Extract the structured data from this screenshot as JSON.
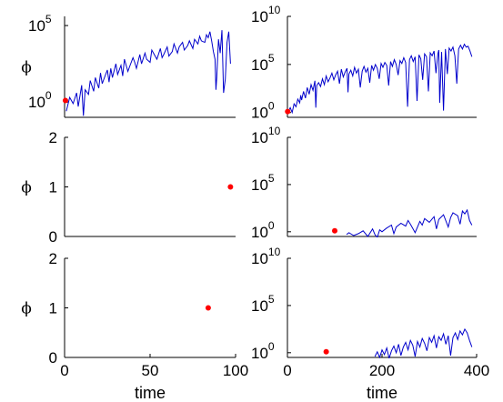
{
  "chart_data": [
    {
      "type": "line",
      "ylabel": "ϕ",
      "yscale": "log",
      "xlim": [
        0,
        100
      ],
      "ylim_exp": [
        -1,
        5.6
      ],
      "yticks": [
        {
          "base": "10",
          "exp": "0",
          "v": 0
        },
        {
          "base": "10",
          "exp": "5",
          "v": 5
        }
      ],
      "xticks": [],
      "marker": {
        "x": 0.5,
        "y_exp": 0.1
      },
      "series": [
        {
          "x": [
            1,
            3,
            5,
            7,
            8,
            10,
            11,
            12,
            14,
            15,
            17,
            18,
            20,
            21,
            22,
            23,
            25,
            26,
            27,
            28,
            30,
            31,
            33,
            34,
            35,
            37,
            38,
            40,
            41,
            42,
            44,
            45,
            47,
            48,
            50,
            51,
            53,
            54,
            56,
            57,
            58,
            60,
            61,
            63,
            64,
            66,
            67,
            69,
            70,
            72,
            73,
            75,
            76,
            78,
            79,
            80,
            82,
            83,
            84,
            85,
            86,
            87,
            88,
            88.5,
            89,
            90,
            91,
            92,
            93,
            94,
            95,
            96,
            97
          ],
          "y_exp": [
            -0.6,
            0.3,
            -0.1,
            0.6,
            -0.3,
            1.1,
            -0.9,
            0.8,
            0.5,
            1.4,
            0.7,
            1.6,
            0.9,
            1.9,
            1.2,
            1.5,
            2.1,
            1.3,
            2.2,
            1.6,
            2.5,
            1.8,
            2.4,
            1.7,
            2.8,
            2.0,
            2.3,
            2.9,
            2.6,
            2.2,
            3.1,
            2.5,
            3.2,
            2.8,
            2.6,
            3.4,
            3.0,
            2.8,
            3.5,
            2.9,
            3.1,
            3.6,
            3.0,
            3.3,
            3.8,
            3.2,
            3.6,
            3.9,
            3.4,
            3.7,
            4.0,
            3.5,
            4.1,
            3.8,
            4.3,
            4.0,
            3.9,
            4.4,
            4.2,
            4.6,
            4.0,
            3.3,
            2.8,
            0.8,
            1.6,
            4.1,
            3.2,
            4.7,
            0.6,
            1.5,
            3.9,
            4.6,
            2.5
          ]
        }
      ]
    },
    {
      "type": "line",
      "ylabel": "",
      "yscale": "log",
      "xlim": [
        0,
        400
      ],
      "ylim_exp": [
        -0.5,
        10
      ],
      "yticks": [
        {
          "base": "10",
          "exp": "0",
          "v": 0
        },
        {
          "base": "10",
          "exp": "5",
          "v": 5
        },
        {
          "base": "10",
          "exp": "10",
          "v": 10
        }
      ],
      "xticks": [],
      "marker": {
        "x": 0.5,
        "y_exp": 0.1
      },
      "series": [
        {
          "x": [
            2,
            6,
            10,
            14,
            18,
            22,
            26,
            28,
            30,
            34,
            38,
            42,
            46,
            50,
            54,
            58,
            60,
            62,
            66,
            70,
            74,
            78,
            82,
            86,
            90,
            94,
            98,
            102,
            106,
            110,
            114,
            118,
            122,
            126,
            128,
            130,
            134,
            138,
            142,
            146,
            150,
            154,
            158,
            162,
            166,
            170,
            174,
            178,
            182,
            186,
            190,
            194,
            198,
            202,
            206,
            210,
            214,
            218,
            222,
            226,
            230,
            234,
            238,
            242,
            246,
            250,
            254,
            258,
            262,
            266,
            270,
            274,
            278,
            282,
            286,
            290,
            294,
            298,
            302,
            306,
            310,
            314,
            318,
            320,
            322,
            326,
            330,
            334,
            338,
            342,
            346,
            350,
            354,
            358,
            362,
            366,
            370,
            374,
            378,
            382,
            386,
            390
          ],
          "y_exp": [
            0.1,
            0.5,
            0.0,
            0.9,
            0.6,
            1.4,
            1.0,
            1.8,
            1.3,
            2.2,
            1.5,
            2.6,
            1.9,
            2.9,
            2.3,
            3.3,
            0.5,
            2.8,
            3.1,
            2.7,
            3.5,
            2.9,
            3.8,
            3.2,
            3.6,
            4.1,
            3.4,
            3.9,
            4.3,
            3.0,
            4.5,
            3.7,
            4.2,
            4.6,
            2.1,
            4.0,
            4.4,
            3.8,
            4.7,
            4.1,
            4.5,
            2.6,
            4.3,
            4.8,
            4.2,
            4.6,
            3.1,
            4.9,
            4.4,
            5.0,
            4.6,
            3.5,
            5.1,
            4.7,
            5.2,
            4.9,
            2.8,
            5.3,
            4.8,
            5.5,
            5.0,
            3.9,
            5.4,
            5.1,
            5.7,
            5.2,
            0.6,
            5.5,
            5.9,
            5.3,
            5.8,
            1.2,
            6.0,
            5.6,
            3.4,
            6.1,
            5.8,
            2.2,
            6.2,
            5.9,
            6.4,
            4.1,
            6.1,
            6.5,
            1.0,
            6.3,
            0.2,
            6.6,
            4.0,
            6.7,
            6.4,
            6.8,
            5.9,
            3.0,
            6.6,
            7.0,
            6.6,
            7.1,
            6.8,
            6.9,
            6.4,
            5.8
          ]
        }
      ]
    },
    {
      "type": "scatter",
      "ylabel": "ϕ",
      "yscale": "linear",
      "xlim": [
        0,
        100
      ],
      "ylim": [
        0,
        2
      ],
      "yticks": [
        {
          "base": "0",
          "v": 0
        },
        {
          "base": "1",
          "v": 1
        },
        {
          "base": "2",
          "v": 2
        }
      ],
      "xticks": [],
      "marker": {
        "x": 97,
        "y": 1
      },
      "series": []
    },
    {
      "type": "line",
      "ylabel": "",
      "yscale": "log",
      "xlim": [
        0,
        400
      ],
      "ylim_exp": [
        -0.5,
        10
      ],
      "yticks": [
        {
          "base": "10",
          "exp": "0",
          "v": 0
        },
        {
          "base": "10",
          "exp": "5",
          "v": 5
        },
        {
          "base": "10",
          "exp": "10",
          "v": 10
        }
      ],
      "xticks": [],
      "marker": {
        "x": 100,
        "y_exp": 0.1
      },
      "series": [
        {
          "x": [
            125,
            130,
            140,
            150,
            160,
            170,
            180,
            185,
            190,
            195,
            200,
            210,
            220,
            225,
            230,
            240,
            250,
            255,
            260,
            270,
            280,
            285,
            290,
            300,
            310,
            315,
            320,
            330,
            340,
            345,
            350,
            360,
            365,
            370,
            375,
            380,
            385,
            390
          ],
          "y_exp": [
            -0.3,
            -0.1,
            -0.4,
            -0.2,
            0.1,
            -0.5,
            0.3,
            -0.3,
            -0.6,
            0.2,
            0.0,
            0.4,
            0.7,
            -0.2,
            0.5,
            0.9,
            0.6,
            1.2,
            0.8,
            -0.1,
            1.1,
            0.7,
            1.4,
            1.0,
            1.6,
            0.3,
            1.3,
            1.8,
            0.5,
            1.5,
            2.0,
            1.7,
            0.8,
            2.2,
            1.9,
            2.3,
            1.2,
            0.7
          ]
        }
      ]
    },
    {
      "type": "scatter",
      "ylabel": "ϕ",
      "yscale": "linear",
      "xlim": [
        0,
        100
      ],
      "ylim": [
        0,
        2
      ],
      "yticks": [
        {
          "base": "0",
          "v": 0
        },
        {
          "base": "1",
          "v": 1
        },
        {
          "base": "2",
          "v": 2
        }
      ],
      "xticks": [
        {
          "base": "0",
          "v": 0
        },
        {
          "base": "50",
          "v": 50
        },
        {
          "base": "100",
          "v": 100
        }
      ],
      "xlabel": "time",
      "marker": {
        "x": 84,
        "y": 1
      },
      "series": []
    },
    {
      "type": "line",
      "ylabel": "",
      "yscale": "log",
      "xlim": [
        0,
        400
      ],
      "ylim_exp": [
        -0.5,
        10
      ],
      "yticks": [
        {
          "base": "10",
          "exp": "0",
          "v": 0
        },
        {
          "base": "10",
          "exp": "5",
          "v": 5
        },
        {
          "base": "10",
          "exp": "10",
          "v": 10
        }
      ],
      "xticks": [
        {
          "base": "0",
          "v": 0
        },
        {
          "base": "200",
          "v": 200
        },
        {
          "base": "400",
          "v": 400
        }
      ],
      "xlabel": "time",
      "marker": {
        "x": 82,
        "y_exp": 0.1
      },
      "series": [
        {
          "x": [
            185,
            190,
            195,
            200,
            205,
            210,
            215,
            220,
            225,
            230,
            235,
            240,
            245,
            250,
            255,
            260,
            265,
            270,
            275,
            280,
            285,
            290,
            295,
            300,
            305,
            310,
            315,
            320,
            325,
            330,
            335,
            340,
            345,
            350,
            355,
            360,
            365,
            370,
            375,
            380,
            385,
            390
          ],
          "y_exp": [
            -0.4,
            0.1,
            -0.5,
            0.3,
            -0.2,
            0.5,
            -0.6,
            0.2,
            0.7,
            0.0,
            0.9,
            -0.3,
            0.6,
            1.1,
            0.3,
            1.3,
            0.8,
            -0.4,
            1.2,
            0.6,
            1.5,
            1.0,
            0.2,
            1.6,
            1.1,
            1.8,
            0.5,
            1.7,
            1.3,
            2.0,
            0.9,
            1.8,
            -0.3,
            1.6,
            2.1,
            1.4,
            2.3,
            1.9,
            2.5,
            2.1,
            1.3,
            0.6
          ]
        }
      ]
    }
  ]
}
